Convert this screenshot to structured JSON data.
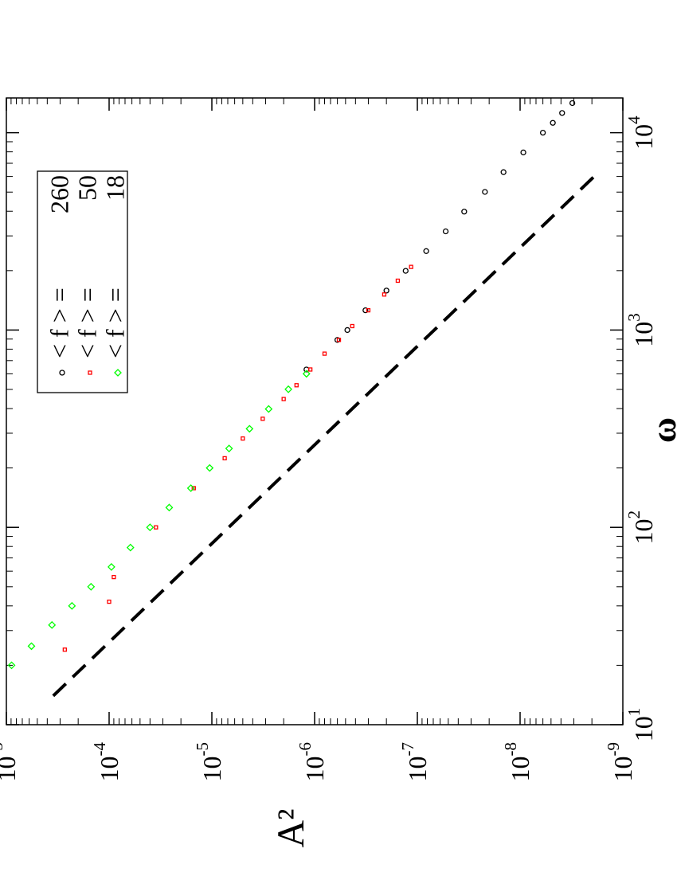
{
  "chart_data": {
    "type": "scatter",
    "x_label": "ω",
    "y_label": "A²",
    "x_log": true,
    "y_log": true,
    "xlim": [
      10,
      15000
    ],
    "ylim": [
      1e-09,
      0.001
    ],
    "xticks": [
      {
        "value": 10,
        "label": "10",
        "exponent": "1"
      },
      {
        "value": 100,
        "label": "10",
        "exponent": "2"
      },
      {
        "value": 1000,
        "label": "10",
        "exponent": "3"
      },
      {
        "value": 10000,
        "label": "10",
        "exponent": "4"
      }
    ],
    "yticks": [
      {
        "value": 1e-09,
        "label": "10",
        "exponent": "-9"
      },
      {
        "value": 1e-08,
        "label": "10",
        "exponent": "-8"
      },
      {
        "value": 1e-07,
        "label": "10",
        "exponent": "-7"
      },
      {
        "value": 1e-06,
        "label": "10",
        "exponent": "-6"
      },
      {
        "value": 1e-05,
        "label": "10",
        "exponent": "-5"
      },
      {
        "value": 0.0001,
        "label": "10",
        "exponent": "-4"
      },
      {
        "value": 0.001,
        "label": "10",
        "exponent": "-3"
      }
    ],
    "x_minor_ticks": [
      20,
      30,
      40,
      50,
      60,
      70,
      80,
      90,
      200,
      300,
      400,
      500,
      600,
      700,
      800,
      900,
      2000,
      3000,
      4000,
      5000,
      6000,
      7000,
      8000,
      9000
    ],
    "y_minor_ticks": [
      2e-09,
      3e-09,
      4e-09,
      5e-09,
      6e-09,
      7e-09,
      8e-09,
      9e-09,
      2e-08,
      3e-08,
      4e-08,
      5e-08,
      6e-08,
      7e-08,
      8e-08,
      9e-08,
      2e-07,
      3e-07,
      4e-07,
      5e-07,
      6e-07,
      7e-07,
      8e-07,
      9e-07,
      2e-06,
      3e-06,
      4e-06,
      5e-06,
      6e-06,
      7e-06,
      8e-06,
      9e-06,
      2e-05,
      3e-05,
      4e-05,
      5e-05,
      6e-05,
      7e-05,
      8e-05,
      9e-05,
      0.0002,
      0.0003,
      0.0004,
      0.0005,
      0.0006,
      0.0007,
      0.0008,
      0.0009
    ],
    "series": [
      {
        "name": "< f > =",
        "f": 260,
        "marker": "circle",
        "color": "#000000",
        "x": [
          631,
          891,
          1000,
          1259,
          1585,
          1995,
          2512,
          3162,
          3981,
          5012,
          6310,
          7943,
          10000,
          11220,
          12589,
          14125
        ],
        "values": [
          1.2e-06,
          6e-07,
          4.8e-07,
          3.2e-07,
          2e-07,
          1.3e-07,
          8.2e-08,
          5.3e-08,
          3.5e-08,
          2.2e-08,
          1.45e-08,
          9.3e-09,
          6e-09,
          4.8e-09,
          3.9e-09,
          3.1e-09
        ]
      },
      {
        "name": "< f > =",
        "f": 50,
        "marker": "square",
        "color": "#ff0000",
        "x": [
          24,
          42,
          56,
          100,
          158,
          224,
          282,
          355,
          447,
          525,
          631,
          759,
          891,
          1047,
          1259,
          1514,
          1778,
          2089
        ],
        "values": [
          0.00027,
          0.0001,
          9e-05,
          3.5e-05,
          1.5e-05,
          7.5e-06,
          5e-06,
          3.2e-06,
          2e-06,
          1.5e-06,
          1.1e-06,
          8e-07,
          5.8e-07,
          4.3e-07,
          3e-07,
          2.1e-07,
          1.55e-07,
          1.15e-07
        ]
      },
      {
        "name": "< f > =",
        "f": 18,
        "marker": "diamond",
        "color": "#00ff00",
        "x": [
          20,
          25,
          32,
          40,
          50,
          63,
          79,
          100,
          126,
          158,
          200,
          251,
          316,
          398,
          501,
          600
        ],
        "values": [
          0.00089,
          0.00057,
          0.00036,
          0.00023,
          0.00015,
          9.5e-05,
          6.2e-05,
          4e-05,
          2.6e-05,
          1.6e-05,
          1.05e-05,
          6.8e-06,
          4.3e-06,
          2.8e-06,
          1.8e-06,
          1.2e-06
        ]
      }
    ],
    "fit_line": {
      "x": [
        14,
        6000
      ],
      "values": [
        0.00035,
        1.9e-09
      ],
      "color": "#000000",
      "dashed": true
    },
    "legend": "upper right"
  }
}
